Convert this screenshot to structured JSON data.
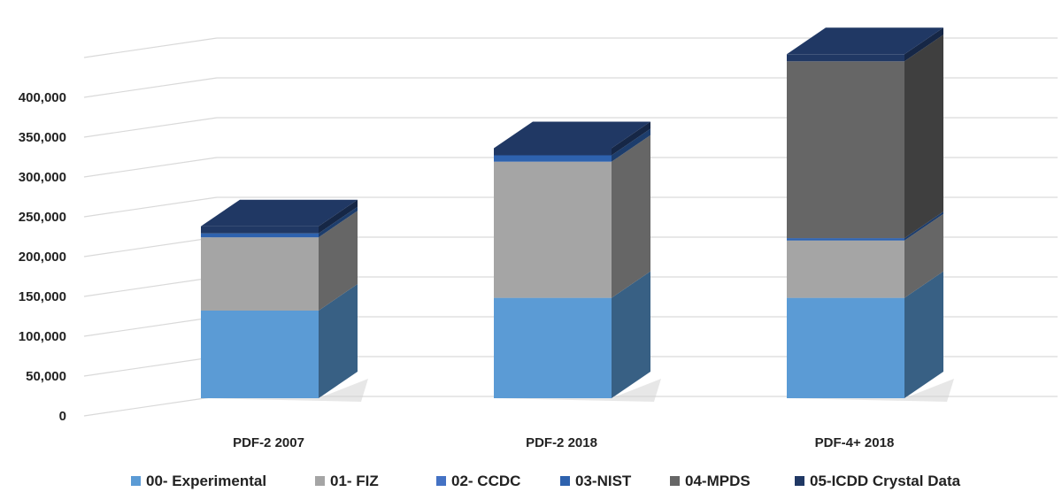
{
  "chart_data": {
    "type": "bar",
    "stacked": true,
    "three_d": true,
    "categories": [
      "PDF-2 2007",
      "PDF-2 2018",
      "PDF-4+ 2018"
    ],
    "series": [
      {
        "name": "00- Experimental",
        "values": [
          110000,
          126000,
          126000
        ],
        "color": "#5b9bd5"
      },
      {
        "name": "01- FIZ",
        "values": [
          92000,
          171000,
          72000
        ],
        "color": "#a5a5a5"
      },
      {
        "name": "02- CCDC",
        "values": [
          0,
          0,
          0
        ],
        "color": "#4472c4"
      },
      {
        "name": "03-NIST",
        "values": [
          5000,
          8000,
          3000
        ],
        "color": "#2e62ae"
      },
      {
        "name": "04-MPDS",
        "values": [
          0,
          0,
          222000
        ],
        "color": "#666666"
      },
      {
        "name": "05-ICDD Crystal Data",
        "values": [
          0,
          0,
          0
        ],
        "color": "#203864"
      }
    ],
    "yticks": [
      "0",
      "50,000",
      "100,000",
      "150,000",
      "200,000",
      "250,000",
      "300,000",
      "350,000",
      "400,000"
    ],
    "ylim": [
      0,
      400000
    ],
    "grid": true,
    "legend_position": "bottom",
    "title": "",
    "xlabel": "",
    "ylabel": ""
  }
}
